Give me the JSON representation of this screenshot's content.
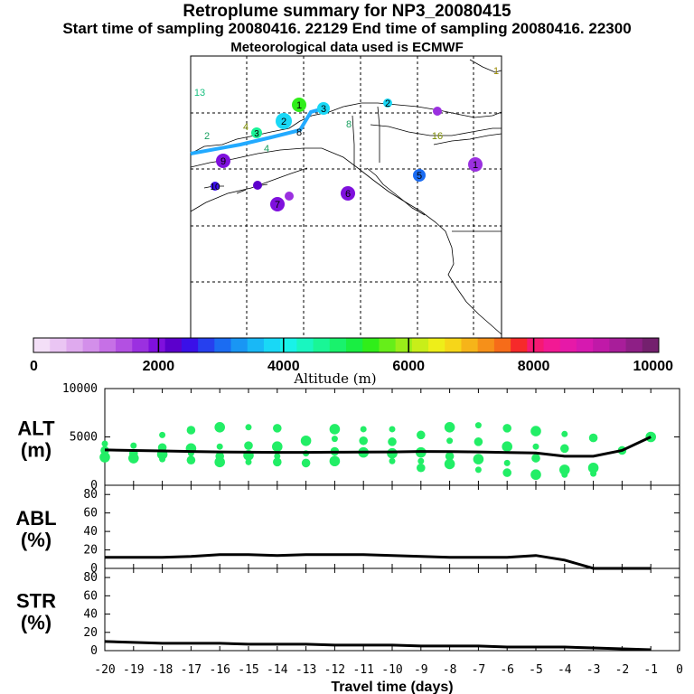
{
  "header": {
    "title": "Retroplume summary for NP3_20080415",
    "sampling": "Start time of sampling 20080416. 22129     End time of sampling 20080416. 22300",
    "met": "Meteorological data used is ECMWF"
  },
  "colors": {
    "plume_points": "#22ee66",
    "median_line": "#000000",
    "trajectory": "#22aaff"
  },
  "colorbar": {
    "xlabel": "Altitude (m)",
    "range": [
      0,
      10000
    ],
    "tick_labels": [
      "0",
      "2000",
      "4000",
      "6000",
      "8000",
      "10000"
    ],
    "colors": [
      "#f3dff7",
      "#eac5f3",
      "#dfaaee",
      "#d38fea",
      "#c670e6",
      "#b350e2",
      "#9b30e0",
      "#7f10dd",
      "#5c00cc",
      "#3a10e8",
      "#2640ee",
      "#1b6cf2",
      "#1996f4",
      "#19b8f6",
      "#19d8f6",
      "#19f2e8",
      "#19f6c0",
      "#19f696",
      "#19f26c",
      "#19ee42",
      "#30ee19",
      "#66ee19",
      "#9aee19",
      "#c8ee19",
      "#eeee19",
      "#f6d619",
      "#f6b419",
      "#f69019",
      "#f66c19",
      "#f62a2a",
      "#f61973",
      "#f21994",
      "#e619a8",
      "#d619b0",
      "#c019a8",
      "#a81e9a",
      "#8e1f86",
      "#74206e"
    ]
  },
  "map": {
    "clusters": [
      {
        "label": "1",
        "alt_m": 5200
      },
      {
        "label": "2",
        "alt_m": 3800
      },
      {
        "label": "3",
        "alt_m": 3700
      },
      {
        "label": "4",
        "alt_m": 4800
      },
      {
        "label": "5",
        "alt_m": 2900
      },
      {
        "label": "6",
        "alt_m": 1600
      },
      {
        "label": "7",
        "alt_m": 1400
      },
      {
        "label": "8",
        "alt_m": 4600
      },
      {
        "label": "9",
        "alt_m": 900
      },
      {
        "label": "10",
        "alt_m": 2000
      },
      {
        "label": "13",
        "alt_m": 5000
      },
      {
        "label": "16",
        "alt_m": 5500
      }
    ]
  },
  "chart_data": [
    {
      "type": "scatter",
      "panel": "ALT",
      "ylabel": "ALT",
      "yunit": "(m)",
      "ylim": [
        0,
        10000
      ],
      "yticks": [
        "0",
        "5000",
        "10000"
      ],
      "xlim": [
        -20,
        0
      ],
      "points_x": [
        -20,
        -20,
        -20,
        -19,
        -19,
        -19,
        -18,
        -18,
        -18,
        -18,
        -17,
        -17,
        -17,
        -17,
        -16,
        -16,
        -16,
        -16,
        -15,
        -15,
        -15,
        -15,
        -14,
        -14,
        -14,
        -14,
        -13,
        -13,
        -13,
        -12,
        -12,
        -12,
        -12,
        -11,
        -11,
        -11,
        -10,
        -10,
        -10,
        -10,
        -9,
        -9,
        -9,
        -9,
        -8,
        -8,
        -8,
        -8,
        -7,
        -7,
        -7,
        -7,
        -6,
        -6,
        -6,
        -6,
        -5,
        -5,
        -5,
        -5,
        -4,
        -4,
        -4,
        -4,
        -3,
        -3,
        -3,
        -2,
        -1
      ],
      "points_y": [
        4300,
        3600,
        2900,
        4100,
        3300,
        2800,
        5200,
        3900,
        3200,
        2700,
        5700,
        3800,
        3300,
        2600,
        6000,
        4000,
        3000,
        2400,
        6000,
        4100,
        3100,
        2400,
        5900,
        4000,
        3000,
        2400,
        4600,
        3300,
        2300,
        5800,
        4800,
        3500,
        2500,
        5800,
        4600,
        3400,
        5800,
        4500,
        3300,
        2500,
        5200,
        3400,
        2500,
        1800,
        6000,
        4600,
        3000,
        2200,
        6200,
        4500,
        2700,
        1600,
        5900,
        4000,
        2300,
        1300,
        5600,
        4000,
        2800,
        1100,
        5300,
        3800,
        1600,
        1100,
        4900,
        1800,
        1200,
        3600,
        5000
      ],
      "median_x": [
        -20,
        -19,
        -18,
        -17,
        -16,
        -15,
        -14,
        -13,
        -12,
        -11,
        -10,
        -9,
        -8,
        -7,
        -6,
        -5,
        -4,
        -3,
        -2,
        -1
      ],
      "median_y": [
        3650,
        3600,
        3550,
        3500,
        3450,
        3420,
        3400,
        3400,
        3420,
        3430,
        3450,
        3500,
        3480,
        3450,
        3380,
        3350,
        3000,
        3000,
        3600,
        5000
      ]
    },
    {
      "type": "line",
      "panel": "ABL",
      "ylabel": "ABL",
      "yunit": "(%)",
      "ylim": [
        0,
        90
      ],
      "yticks": [
        "0",
        "20",
        "40",
        "60",
        "80"
      ],
      "x": [
        -20,
        -19,
        -18,
        -17,
        -16,
        -15,
        -14,
        -13,
        -12,
        -11,
        -10,
        -9,
        -8,
        -7,
        -6,
        -5,
        -4,
        -3,
        -2,
        -1
      ],
      "values": [
        12,
        12,
        12,
        13,
        15,
        15,
        14,
        15,
        15,
        15,
        14,
        13,
        12,
        12,
        12,
        14,
        9,
        0,
        0,
        0
      ]
    },
    {
      "type": "line",
      "panel": "STR",
      "ylabel": "STR",
      "yunit": "(%)",
      "ylim": [
        0,
        90
      ],
      "yticks": [
        "0",
        "20",
        "40",
        "60",
        "80"
      ],
      "x": [
        -20,
        -19,
        -18,
        -17,
        -16,
        -15,
        -14,
        -13,
        -12,
        -11,
        -10,
        -9,
        -8,
        -7,
        -6,
        -5,
        -4,
        -3,
        -2,
        -1
      ],
      "values": [
        10,
        9,
        8,
        8,
        8,
        7,
        7,
        7,
        6,
        6,
        6,
        5,
        5,
        5,
        4,
        4,
        4,
        3,
        2,
        1
      ]
    }
  ],
  "xaxis": {
    "xlabel": "Travel time (days)",
    "tick_labels": [
      "-20",
      "-19",
      "-18",
      "-17",
      "-16",
      "-15",
      "-14",
      "-13",
      "-12",
      "-11",
      "-10",
      "-9",
      "-8",
      "-7",
      "-6",
      "-5",
      "-4",
      "-3",
      "-2",
      "-1",
      "0"
    ]
  }
}
